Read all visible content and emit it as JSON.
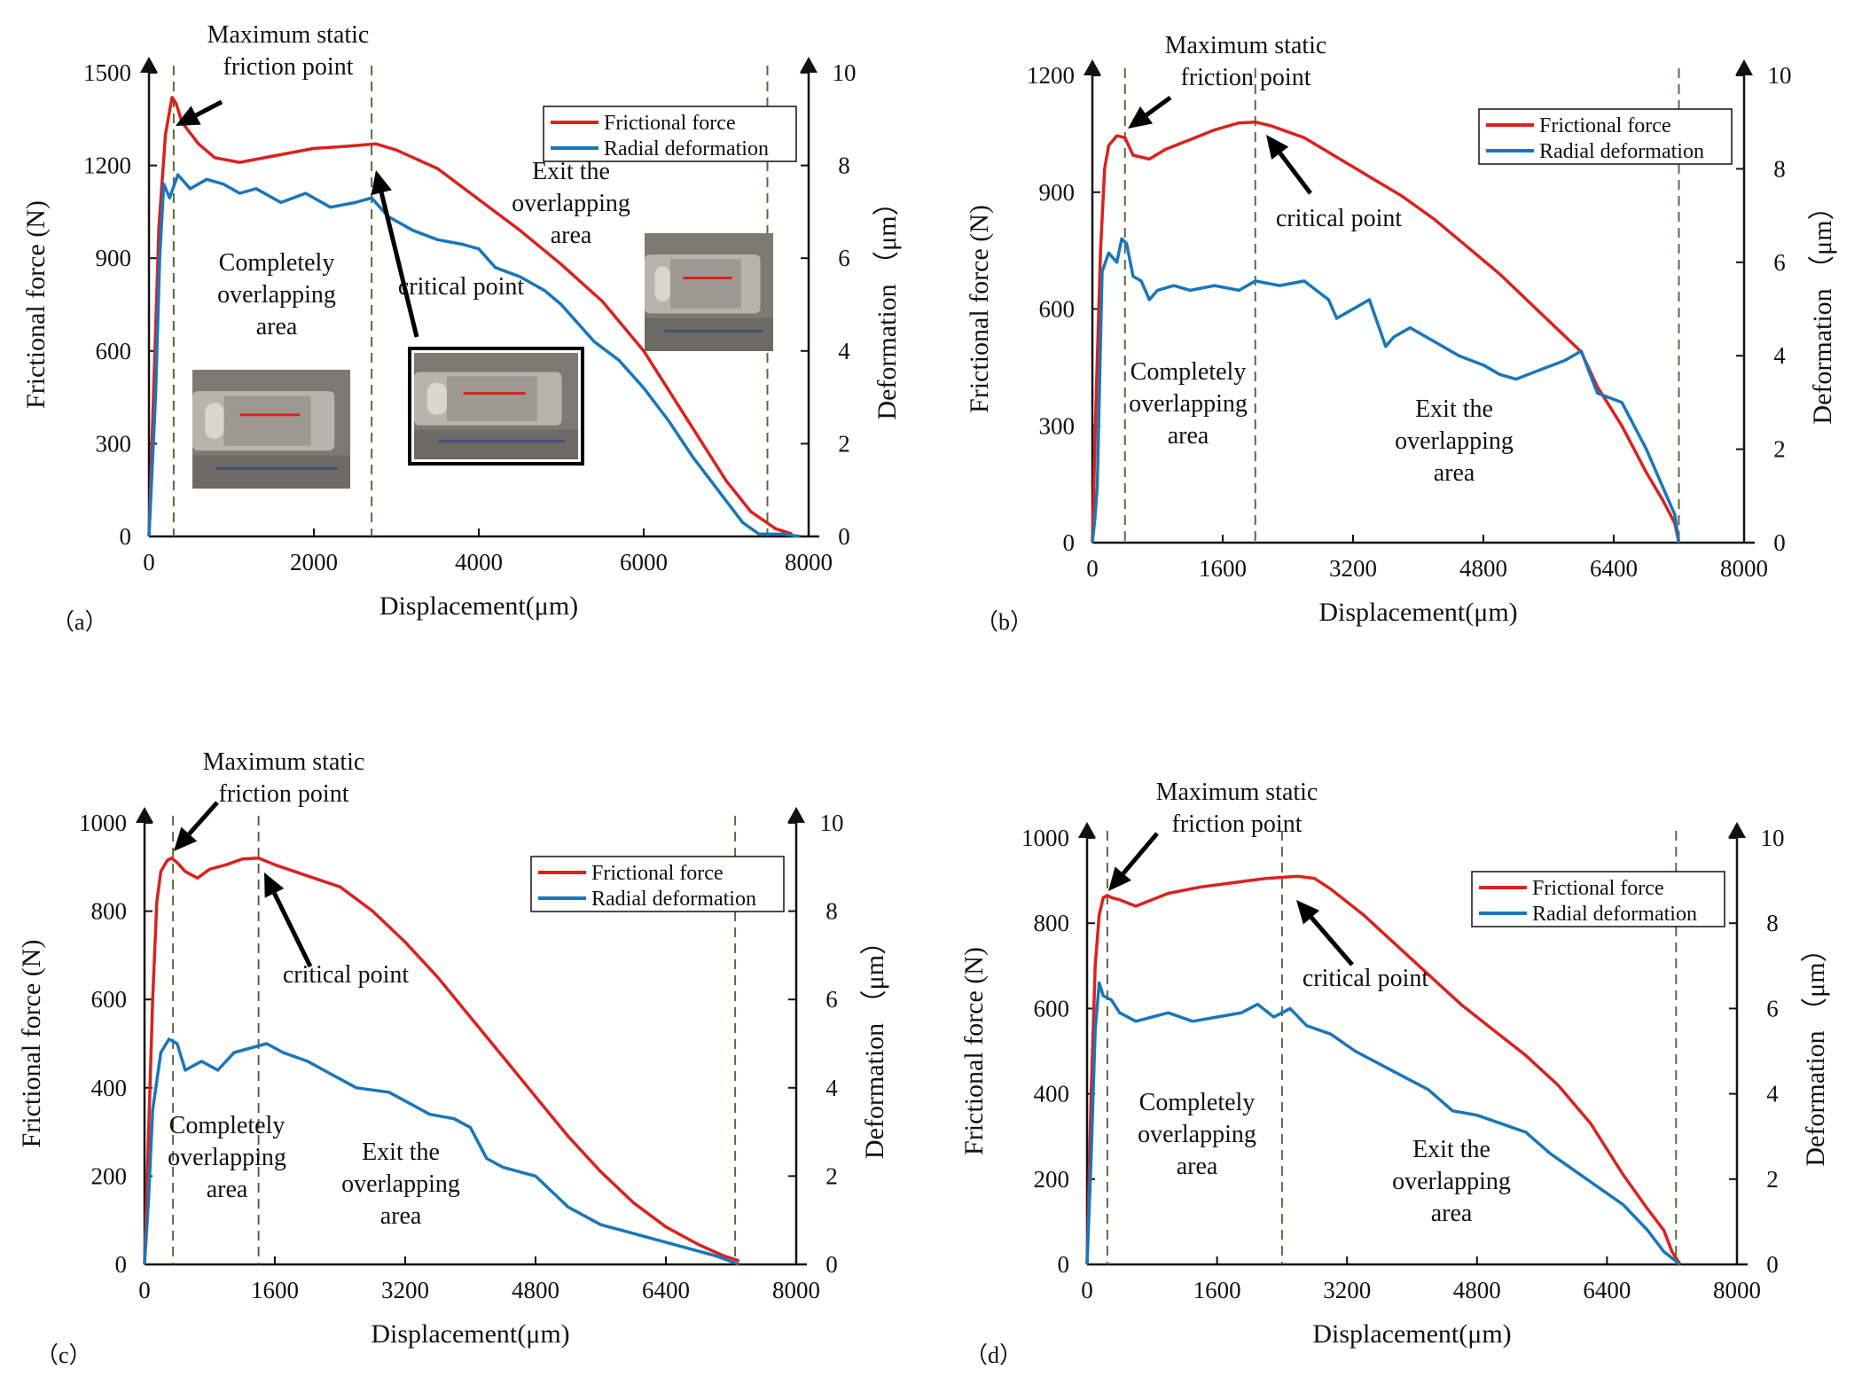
{
  "figure": {
    "colors": {
      "force": "#d9221f",
      "deformation": "#1a76bb",
      "divider": "#5a6b3a",
      "axis": "#111111"
    }
  },
  "chart_data": [
    {
      "type": "line",
      "panel_label": "（a）",
      "xlabel": "Displacement(μm)",
      "ylabel": "Frictional force (N)",
      "ylabel_right": "Deformation （μm）",
      "xlim": [
        0,
        8000
      ],
      "ylim": [
        0,
        1500
      ],
      "ylim_right": [
        0,
        10
      ],
      "xticks": [
        0,
        2000,
        4000,
        6000,
        8000
      ],
      "yticks": [
        0,
        300,
        600,
        900,
        1200,
        1500
      ],
      "yticks_right": [
        0,
        2,
        4,
        6,
        8,
        10
      ],
      "legend_position": "top-right",
      "series": [
        {
          "name": "Frictional force",
          "axis": "left",
          "color": "#d9221f",
          "x": [
            0,
            60,
            120,
            200,
            280,
            330,
            400,
            600,
            800,
            1100,
            1500,
            2000,
            2400,
            2750,
            3000,
            3500,
            4000,
            4500,
            5000,
            5500,
            6000,
            6500,
            7000,
            7300,
            7600,
            7800
          ],
          "y": [
            0,
            500,
            1000,
            1300,
            1420,
            1400,
            1340,
            1270,
            1225,
            1210,
            1230,
            1255,
            1262,
            1270,
            1250,
            1190,
            1090,
            990,
            880,
            760,
            600,
            390,
            180,
            80,
            25,
            8
          ]
        },
        {
          "name": "Radial deformation",
          "axis": "right",
          "color": "#1a76bb",
          "x": [
            0,
            80,
            130,
            180,
            250,
            350,
            500,
            700,
            900,
            1100,
            1300,
            1600,
            1900,
            2200,
            2500,
            2700,
            2900,
            3200,
            3500,
            3800,
            4000,
            4200,
            4500,
            4800,
            5000,
            5200,
            5400,
            5700,
            6000,
            6300,
            6600,
            6900,
            7200,
            7400,
            7700,
            7900
          ],
          "y": [
            0,
            3,
            6,
            7.6,
            7.3,
            7.8,
            7.5,
            7.7,
            7.6,
            7.4,
            7.5,
            7.2,
            7.4,
            7.1,
            7.2,
            7.3,
            6.9,
            6.6,
            6.4,
            6.3,
            6.2,
            5.8,
            5.6,
            5.3,
            5,
            4.6,
            4.2,
            3.8,
            3.2,
            2.5,
            1.7,
            1,
            0.3,
            0.05,
            0.05,
            0
          ]
        }
      ],
      "annotations": [
        {
          "text": "Maximum static friction point"
        },
        {
          "text": "critical point"
        },
        {
          "text": "Completely overlapping area"
        },
        {
          "text": "Exit the overlapping area"
        }
      ],
      "dividers_x": [
        300,
        2700,
        7500
      ]
    },
    {
      "type": "line",
      "panel_label": "（b）",
      "xlabel": "Displacement(μm)",
      "ylabel": "Frictional force (N)",
      "ylabel_right": "Deformation （μm）",
      "xlim": [
        0,
        8000
      ],
      "ylim": [
        0,
        1200
      ],
      "ylim_right": [
        0,
        10
      ],
      "xticks": [
        0,
        1600,
        3200,
        4800,
        6400,
        8000
      ],
      "yticks": [
        0,
        300,
        600,
        900,
        1200
      ],
      "yticks_right": [
        0,
        2,
        4,
        6,
        8,
        10
      ],
      "legend_position": "top-right",
      "series": [
        {
          "name": "Frictional force",
          "axis": "left",
          "color": "#d9221f",
          "x": [
            0,
            50,
            100,
            150,
            200,
            300,
            400,
            500,
            700,
            900,
            1200,
            1500,
            1800,
            2000,
            2200,
            2600,
            3000,
            3400,
            3800,
            4200,
            4600,
            5000,
            5400,
            5800,
            6000,
            6200,
            6500,
            6800,
            7000,
            7150,
            7200
          ],
          "y": [
            0,
            400,
            750,
            960,
            1020,
            1045,
            1040,
            995,
            985,
            1010,
            1035,
            1060,
            1078,
            1080,
            1070,
            1040,
            990,
            940,
            890,
            830,
            760,
            690,
            610,
            530,
            490,
            400,
            300,
            180,
            110,
            50,
            0
          ]
        },
        {
          "name": "Radial deformation",
          "axis": "right",
          "color": "#1a76bb",
          "x": [
            0,
            30,
            60,
            120,
            200,
            300,
            360,
            420,
            500,
            600,
            700,
            800,
            1000,
            1200,
            1500,
            1800,
            2000,
            2300,
            2600,
            2900,
            3000,
            3200,
            3400,
            3600,
            3700,
            3900,
            4200,
            4500,
            4800,
            5000,
            5200,
            5500,
            5800,
            6000,
            6200,
            6500,
            6800,
            7000,
            7150,
            7200
          ],
          "y": [
            0,
            0.5,
            1.2,
            5.8,
            6.2,
            6.0,
            6.5,
            6.4,
            5.7,
            5.6,
            5.2,
            5.4,
            5.5,
            5.4,
            5.5,
            5.4,
            5.6,
            5.5,
            5.6,
            5.2,
            4.8,
            5.0,
            5.2,
            4.2,
            4.4,
            4.6,
            4.3,
            4.0,
            3.8,
            3.6,
            3.5,
            3.7,
            3.9,
            4.1,
            3.2,
            3.0,
            2.0,
            1.2,
            0.6,
            0
          ]
        }
      ],
      "annotations": [
        {
          "text": "Maximum static friction point"
        },
        {
          "text": "critical point"
        },
        {
          "text": "Completely overlapping area"
        },
        {
          "text": "Exit the overlapping area"
        }
      ],
      "dividers_x": [
        400,
        2000,
        7200
      ]
    },
    {
      "type": "line",
      "panel_label": "（c）",
      "xlabel": "Displacement(μm)",
      "ylabel": "Frictional force (N)",
      "ylabel_right": "Deformation （μm）",
      "xlim": [
        0,
        8000
      ],
      "ylim": [
        0,
        1000
      ],
      "ylim_right": [
        0,
        10
      ],
      "xticks": [
        0,
        1600,
        3200,
        4800,
        6400,
        8000
      ],
      "yticks": [
        0,
        200,
        400,
        600,
        800,
        1000
      ],
      "yticks_right": [
        0,
        2,
        4,
        6,
        8,
        10
      ],
      "legend_position": "top-right",
      "series": [
        {
          "name": "Frictional force",
          "axis": "left",
          "color": "#d9221f",
          "x": [
            0,
            50,
            100,
            150,
            200,
            280,
            330,
            400,
            500,
            650,
            800,
            1000,
            1200,
            1400,
            1600,
            2000,
            2400,
            2800,
            3200,
            3600,
            4000,
            4400,
            4800,
            5200,
            5600,
            6000,
            6400,
            6800,
            7100,
            7300
          ],
          "y": [
            0,
            300,
            600,
            820,
            890,
            915,
            920,
            910,
            890,
            875,
            895,
            905,
            918,
            920,
            905,
            880,
            855,
            800,
            730,
            650,
            560,
            470,
            380,
            290,
            210,
            140,
            85,
            45,
            20,
            8
          ]
        },
        {
          "name": "Radial deformation",
          "axis": "right",
          "color": "#1a76bb",
          "x": [
            0,
            50,
            100,
            200,
            300,
            400,
            500,
            700,
            900,
            1100,
            1300,
            1500,
            1700,
            2000,
            2300,
            2600,
            3000,
            3200,
            3500,
            3800,
            4000,
            4200,
            4400,
            4800,
            5200,
            5600,
            6000,
            6400,
            6800,
            7000,
            7300
          ],
          "y": [
            0,
            1.5,
            3.5,
            4.8,
            5.1,
            5.0,
            4.4,
            4.6,
            4.4,
            4.8,
            4.9,
            5.0,
            4.8,
            4.6,
            4.3,
            4.0,
            3.9,
            3.7,
            3.4,
            3.3,
            3.1,
            2.4,
            2.2,
            2.0,
            1.3,
            0.9,
            0.7,
            0.5,
            0.3,
            0.2,
            0
          ]
        }
      ],
      "annotations": [
        {
          "text": "Maximum static friction point"
        },
        {
          "text": "critical point"
        },
        {
          "text": "Completely overlapping area"
        },
        {
          "text": "Exit the overlapping area"
        }
      ],
      "dividers_x": [
        350,
        1400,
        7250
      ]
    },
    {
      "type": "line",
      "panel_label": "（d）",
      "xlabel": "Displacement(μm)",
      "ylabel": "Frictional force (N)",
      "ylabel_right": "Deformation （μm）",
      "xlim": [
        0,
        8000
      ],
      "ylim": [
        0,
        1000
      ],
      "ylim_right": [
        0,
        10
      ],
      "xticks": [
        0,
        1600,
        3200,
        4800,
        6400,
        8000
      ],
      "yticks": [
        0,
        200,
        400,
        600,
        800,
        1000
      ],
      "yticks_right": [
        0,
        2,
        4,
        6,
        8,
        10
      ],
      "legend_position": "top-right",
      "series": [
        {
          "name": "Frictional force",
          "axis": "left",
          "color": "#d9221f",
          "x": [
            0,
            50,
            100,
            150,
            200,
            250,
            300,
            400,
            600,
            800,
            1000,
            1400,
            1800,
            2200,
            2600,
            2800,
            3000,
            3400,
            3800,
            4200,
            4600,
            5000,
            5400,
            5800,
            6200,
            6600,
            6900,
            7100,
            7200,
            7300
          ],
          "y": [
            0,
            400,
            700,
            820,
            860,
            865,
            860,
            855,
            840,
            855,
            870,
            885,
            895,
            905,
            910,
            905,
            880,
            820,
            750,
            680,
            610,
            550,
            490,
            420,
            330,
            210,
            130,
            80,
            30,
            0
          ]
        },
        {
          "name": "Radial deformation",
          "axis": "right",
          "color": "#1a76bb",
          "x": [
            0,
            50,
            100,
            150,
            200,
            300,
            400,
            600,
            800,
            1000,
            1300,
            1600,
            1900,
            2100,
            2300,
            2500,
            2700,
            3000,
            3300,
            3600,
            3900,
            4200,
            4500,
            4800,
            5100,
            5400,
            5700,
            6000,
            6300,
            6600,
            6900,
            7100,
            7300
          ],
          "y": [
            0,
            2.5,
            5.5,
            6.6,
            6.3,
            6.2,
            5.9,
            5.7,
            5.8,
            5.9,
            5.7,
            5.8,
            5.9,
            6.1,
            5.8,
            6.0,
            5.6,
            5.4,
            5.0,
            4.7,
            4.4,
            4.1,
            3.6,
            3.5,
            3.3,
            3.1,
            2.6,
            2.2,
            1.8,
            1.4,
            0.8,
            0.3,
            0
          ]
        }
      ],
      "annotations": [
        {
          "text": "Maximum static friction point"
        },
        {
          "text": "critical point"
        },
        {
          "text": "Completely overlapping area"
        },
        {
          "text": "Exit the overlapping area"
        }
      ],
      "dividers_x": [
        250,
        2400,
        7250
      ]
    }
  ]
}
